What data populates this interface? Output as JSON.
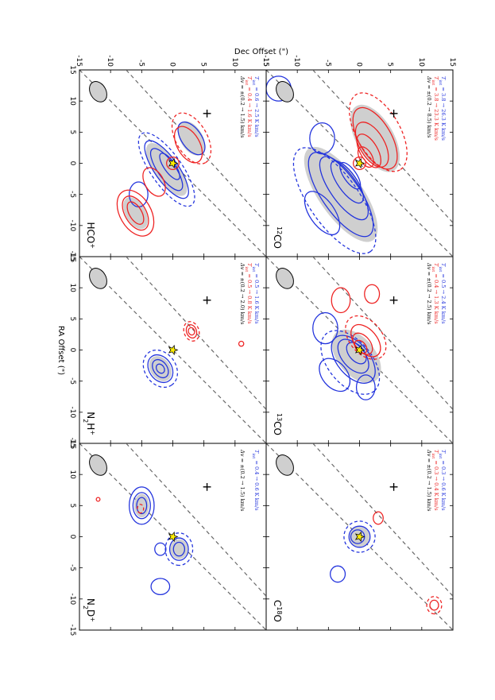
{
  "figure": {
    "xlabel": "RA Offset (\")",
    "ylabel": "Dec Offset (\")",
    "ra_ticks": [
      "15",
      "10",
      "5",
      "0",
      "-5",
      "-10",
      "-15"
    ],
    "dec_ticks": [
      "15",
      "10",
      "5",
      "0",
      "-5",
      "-10",
      "-15"
    ],
    "colors": {
      "blue": "#2233dd",
      "red": "#ee2222",
      "black": "#222222",
      "shade": "#cfcfcf",
      "star": "#ffee00"
    },
    "panels": [
      {
        "id": "12co",
        "molecule_main": "CO",
        "molecule_pre_sup": "12",
        "blue_range": "= 3.8 → 26.3 K km/s",
        "red_range": "= 3.8 → 23.3 K km/s",
        "dv_range": "= ±(0.2 → 8.5) km/s"
      },
      {
        "id": "13co",
        "molecule_main": "CO",
        "molecule_pre_sup": "13",
        "blue_range": "= 0.5 → 2.4 K km/s",
        "red_range": "= 0.4 → 1.3 K km/s",
        "dv_range": "= ±(0.2 → 2.5) km/s"
      },
      {
        "id": "c18o",
        "molecule_main": "C",
        "molecule_sup": "18",
        "molecule_tail": "O",
        "blue_range": "= 0.3 → 0.6 K km/s",
        "red_range": "= 0.3 → 0.4 K km/s",
        "dv_range": "= ±(0.2 → 1.5) km/s"
      },
      {
        "id": "hcop",
        "molecule_main": "HCO",
        "molecule_sup": "+",
        "blue_range": "= 0.6 → 2.5 K km/s",
        "red_range": "= 0.4 → 1.6 K km/s",
        "dv_range": "= ±(0.2 → 1.5) km/s"
      },
      {
        "id": "n2hp",
        "molecule_main": "N",
        "molecule_sub": "2",
        "molecule_tail": "H",
        "molecule_sup": "+",
        "blue_range": "= 0.5 → 1.6 K km/s",
        "red_range": "= 0.5 → 0.8 K km/s",
        "dv_range": "= ±(0.2 → 2.0) km/s"
      },
      {
        "id": "n2dp",
        "molecule_main": "N",
        "molecule_sub": "2",
        "molecule_tail": "D",
        "molecule_sup": "+",
        "blue_range": "= 0.4 → 0.6 K km/s",
        "red_range": "",
        "dv_range": "= ±(0.2 → 1.5) km/s"
      }
    ]
  }
}
